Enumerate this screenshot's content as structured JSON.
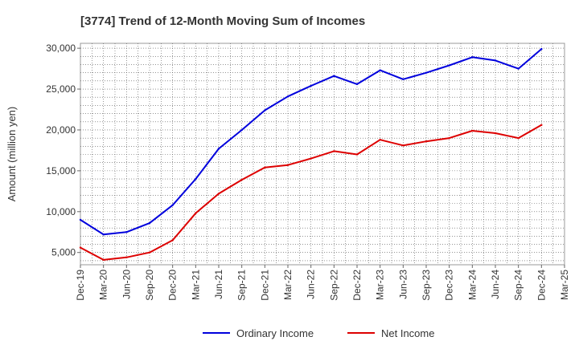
{
  "chart_data": {
    "type": "line",
    "title": "[3774]  Trend of 12-Month Moving Sum of Incomes",
    "xlabel": "",
    "ylabel": "Amount (million yen)",
    "ylim": [
      3500,
      30600
    ],
    "grid": true,
    "legend_position": "bottom-center",
    "y_ticks": [
      5000,
      10000,
      15000,
      20000,
      25000,
      30000
    ],
    "y_tick_labels": [
      "5,000",
      "10,000",
      "15,000",
      "20,000",
      "25,000",
      "30,000"
    ],
    "categories": [
      "Dec-19",
      "Mar-20",
      "Jun-20",
      "Sep-20",
      "Dec-20",
      "Mar-21",
      "Jun-21",
      "Sep-21",
      "Dec-21",
      "Mar-22",
      "Jun-22",
      "Sep-22",
      "Dec-22",
      "Mar-23",
      "Jun-23",
      "Sep-23",
      "Dec-23",
      "Mar-24",
      "Jun-24",
      "Sep-24",
      "Dec-24",
      "Mar-25"
    ],
    "series": [
      {
        "name": "Ordinary Income",
        "color": "#0000dd",
        "values": [
          9000,
          7200,
          7500,
          8600,
          10800,
          14000,
          17700,
          20000,
          22400,
          24100,
          25400,
          26600,
          25600,
          27300,
          26200,
          27000,
          27900,
          28900,
          28500,
          27500,
          29900,
          null
        ]
      },
      {
        "name": "Net Income",
        "color": "#dd0000",
        "values": [
          5600,
          4100,
          4400,
          5000,
          6500,
          9800,
          12200,
          13900,
          15400,
          15700,
          16500,
          17400,
          17000,
          18800,
          18100,
          18600,
          19000,
          19900,
          19600,
          19000,
          20600,
          null
        ]
      }
    ]
  }
}
